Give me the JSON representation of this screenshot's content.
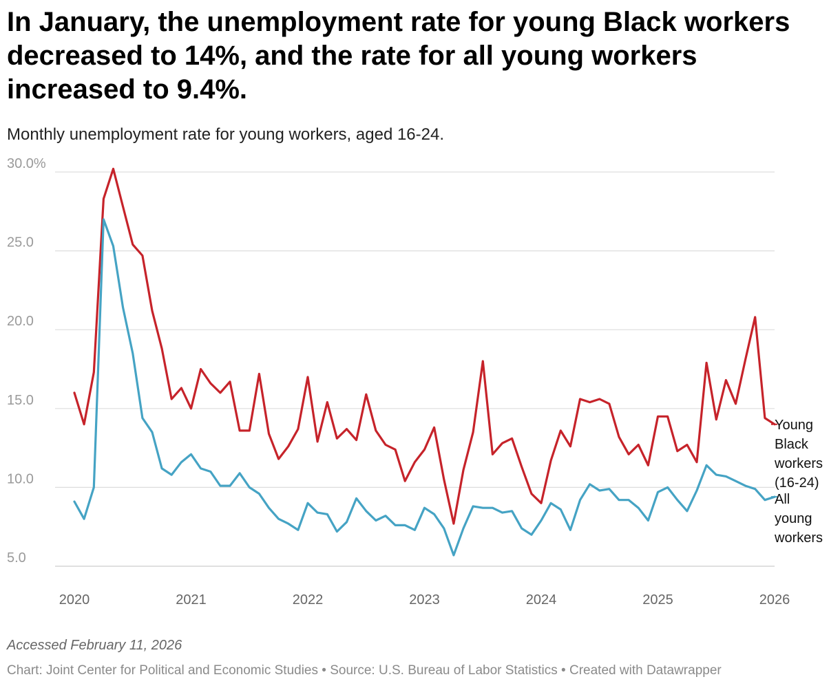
{
  "title": "In January, the unemployment rate for young Black workers decreased to 14%, and the rate for all young workers increased to 9.4%.",
  "subtitle": "Monthly unemployment rate for young workers, aged 16-24.",
  "notes": "Accessed February 11, 2026",
  "credits": {
    "chart": "Chart: Joint Center for Political and Economic Studies",
    "source": "Source: U.S. Bureau of Labor Statistics",
    "tool": "Created with Datawrapper",
    "separator": " • "
  },
  "colors": {
    "black_series": "#c6232a",
    "all_series": "#45a3c4",
    "grid": "#dddddd",
    "zero_grid": "#cccccc"
  },
  "chart_data": {
    "type": "line",
    "title": "In January, the unemployment rate for young Black workers decreased to 14%, and the rate for all young workers increased to 9.4%.",
    "subtitle": "Monthly unemployment rate for young workers, aged 16-24.",
    "xlabel": "",
    "ylabel": "",
    "x_start": "2020-01",
    "x_end": "2026-01",
    "x_range": [
      2020,
      2026
    ],
    "x_ticks": [
      "2020",
      "2021",
      "2022",
      "2023",
      "2024",
      "2025",
      "2026"
    ],
    "ylim": [
      5,
      30
    ],
    "y_ticks": [
      5,
      10,
      15,
      20,
      25,
      30
    ],
    "y_tick_labels": [
      "5.0",
      "10.0",
      "15.0",
      "20.0",
      "25.0",
      "30.0%"
    ],
    "grid": true,
    "legend": "direct labels at line ends (right)",
    "series": [
      {
        "name": "Young Black workers (16-24)",
        "label_lines": [
          "Young",
          "Black",
          "workers",
          "(16-24)"
        ],
        "color": "#c6232a",
        "values": [
          16.0,
          14.0,
          17.3,
          28.3,
          30.2,
          27.8,
          25.4,
          24.7,
          21.2,
          18.8,
          15.6,
          16.3,
          15.0,
          17.5,
          16.6,
          16.0,
          16.7,
          13.6,
          13.6,
          17.2,
          13.4,
          11.8,
          12.6,
          13.7,
          17.0,
          12.9,
          15.4,
          13.1,
          13.7,
          13.0,
          15.9,
          13.6,
          12.7,
          12.4,
          10.4,
          11.6,
          12.4,
          13.8,
          10.5,
          7.7,
          11.1,
          13.5,
          18.0,
          12.1,
          12.8,
          13.1,
          11.3,
          9.6,
          9.0,
          11.7,
          13.6,
          12.6,
          15.6,
          15.4,
          15.6,
          15.3,
          13.2,
          12.1,
          12.7,
          11.4,
          14.5,
          14.5,
          12.3,
          12.7,
          11.6,
          17.9,
          14.3,
          16.8,
          15.3,
          18.1,
          20.8,
          14.4,
          14.0
        ]
      },
      {
        "name": "All young workers",
        "label_lines": [
          "All",
          "young",
          "workers"
        ],
        "color": "#45a3c4",
        "values": [
          9.1,
          8.0,
          10.0,
          27.0,
          25.3,
          21.4,
          18.5,
          14.4,
          13.5,
          11.2,
          10.8,
          11.6,
          12.1,
          11.2,
          11.0,
          10.1,
          10.1,
          10.9,
          10.0,
          9.6,
          8.7,
          8.0,
          7.7,
          7.3,
          9.0,
          8.4,
          8.3,
          7.2,
          7.8,
          9.3,
          8.5,
          7.9,
          8.2,
          7.6,
          7.6,
          7.3,
          8.7,
          8.3,
          7.4,
          5.7,
          7.4,
          8.8,
          8.7,
          8.7,
          8.4,
          8.5,
          7.4,
          7.0,
          7.9,
          9.0,
          8.6,
          7.3,
          9.2,
          10.2,
          9.8,
          9.9,
          9.2,
          9.2,
          8.7,
          7.9,
          9.7,
          10.0,
          9.2,
          8.5,
          9.8,
          11.4,
          10.8,
          10.7,
          10.4,
          10.1,
          9.9,
          9.2,
          9.4
        ]
      }
    ]
  }
}
